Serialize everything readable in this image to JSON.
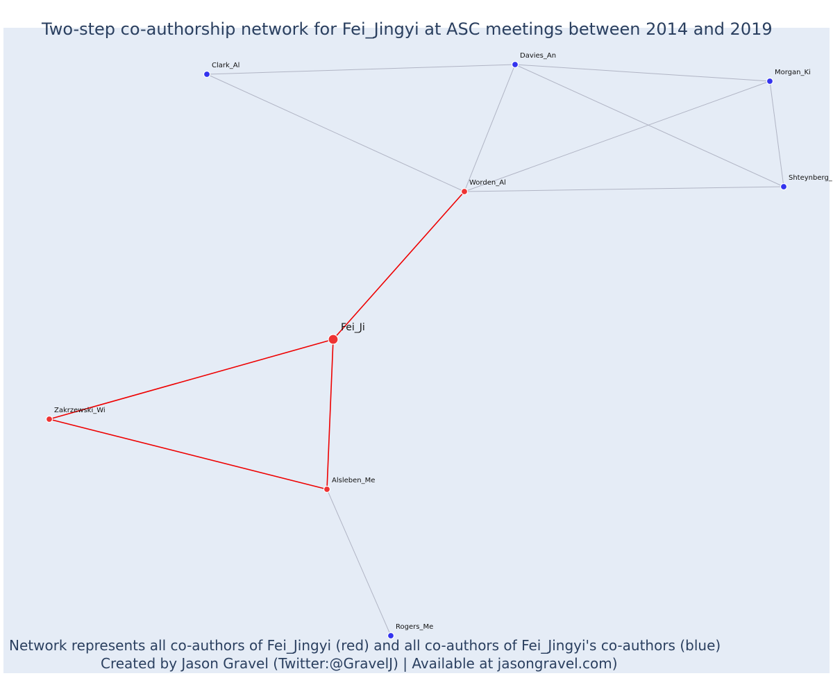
{
  "title": "Two-step co-authorship network for Fei_Jingyi at ASC meetings between 2014 and 2019",
  "footer": {
    "line1": "Network represents all co-authors of Fei_Jingyi (red) and all co-authors of Fei_Jingyi's co-authors (blue)",
    "line2": "Created by Jason Gravel (Twitter:@GravelJ) | Available at jasongravel.com)"
  },
  "colors": {
    "background": "#e5ecf6",
    "red_node": "#ee3333",
    "blue_node": "#3333ee",
    "red_edge": "#ee0000",
    "gray_edge": "#b0b4c4",
    "text": "#2a3f5f"
  },
  "nodes": [
    {
      "id": "Fei_Ji",
      "label": "Fei_Ji",
      "group": "center"
    },
    {
      "id": "Worden_Al",
      "label": "Worden_Al",
      "group": "red"
    },
    {
      "id": "Zakrzewski_Wi",
      "label": "Zakrzewski_Wi",
      "group": "red"
    },
    {
      "id": "Alsleben_Me",
      "label": "Alsleben_Me",
      "group": "red"
    },
    {
      "id": "Clark_Al",
      "label": "Clark_Al",
      "group": "blue"
    },
    {
      "id": "Davies_An",
      "label": "Davies_An",
      "group": "blue"
    },
    {
      "id": "Morgan_Ki",
      "label": "Morgan_Ki",
      "group": "blue"
    },
    {
      "id": "Shteynberg_",
      "label": "Shteynberg_",
      "group": "blue"
    },
    {
      "id": "Rogers_Me",
      "label": "Rogers_Me",
      "group": "blue"
    }
  ],
  "edges": [
    {
      "source": "Fei_Ji",
      "target": "Worden_Al",
      "type": "red"
    },
    {
      "source": "Fei_Ji",
      "target": "Zakrzewski_Wi",
      "type": "red"
    },
    {
      "source": "Fei_Ji",
      "target": "Alsleben_Me",
      "type": "red"
    },
    {
      "source": "Zakrzewski_Wi",
      "target": "Alsleben_Me",
      "type": "red"
    },
    {
      "source": "Worden_Al",
      "target": "Clark_Al",
      "type": "gray"
    },
    {
      "source": "Worden_Al",
      "target": "Davies_An",
      "type": "gray"
    },
    {
      "source": "Worden_Al",
      "target": "Morgan_Ki",
      "type": "gray"
    },
    {
      "source": "Worden_Al",
      "target": "Shteynberg_",
      "type": "gray"
    },
    {
      "source": "Clark_Al",
      "target": "Davies_An",
      "type": "gray"
    },
    {
      "source": "Davies_An",
      "target": "Morgan_Ki",
      "type": "gray"
    },
    {
      "source": "Davies_An",
      "target": "Shteynberg_",
      "type": "gray"
    },
    {
      "source": "Morgan_Ki",
      "target": "Shteynberg_",
      "type": "gray"
    },
    {
      "source": "Alsleben_Me",
      "target": "Rogers_Me",
      "type": "gray"
    }
  ]
}
